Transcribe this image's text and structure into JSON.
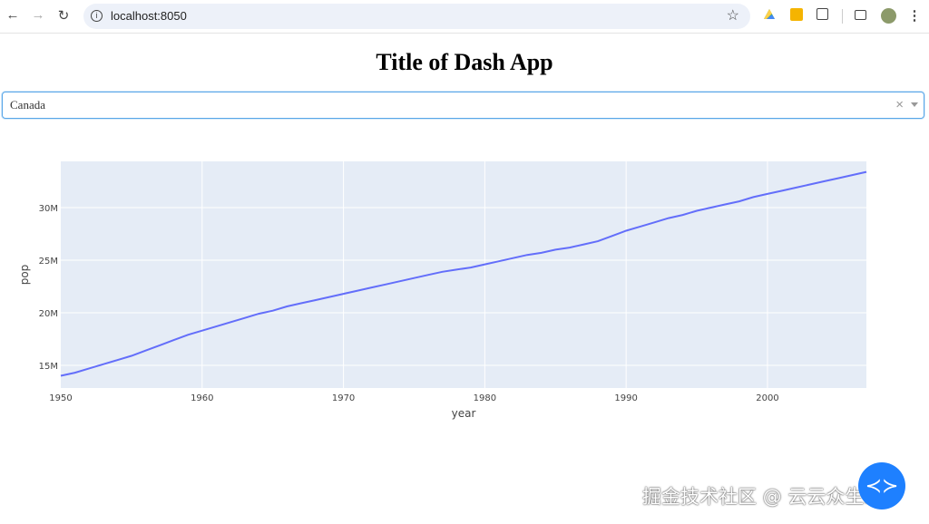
{
  "browser": {
    "url": "localhost:8050",
    "icons": [
      "back-icon",
      "forward-icon",
      "reload-icon",
      "site-info-icon",
      "bookmark-star-icon",
      "google-drive-icon",
      "keep-icon",
      "extensions-icon",
      "cast-icon",
      "profile-avatar",
      "more-menu-icon"
    ]
  },
  "page": {
    "title": "Title of Dash App"
  },
  "dropdown": {
    "value": "Canada",
    "clear_symbol": "×"
  },
  "chart_data": {
    "type": "line",
    "title": "",
    "xlabel": "year",
    "ylabel": "pop",
    "xlim": [
      1950,
      2007
    ],
    "ylim": [
      12840000,
      34400000
    ],
    "xticks": [
      1950,
      1960,
      1970,
      1980,
      1990,
      2000
    ],
    "xtick_labels": [
      "1950",
      "1960",
      "1970",
      "1980",
      "1990",
      "2000"
    ],
    "yticks": [
      15000000,
      20000000,
      25000000,
      30000000
    ],
    "ytick_labels": [
      "15M",
      "20M",
      "25M",
      "30M"
    ],
    "grid": true,
    "line_color": "#636efa",
    "plot_bg": "#e5ecf6",
    "x": [
      1950,
      1951,
      1952,
      1953,
      1954,
      1955,
      1956,
      1957,
      1958,
      1959,
      1960,
      1961,
      1962,
      1963,
      1964,
      1965,
      1966,
      1967,
      1968,
      1969,
      1970,
      1971,
      1972,
      1973,
      1974,
      1975,
      1976,
      1977,
      1978,
      1979,
      1980,
      1981,
      1982,
      1983,
      1984,
      1985,
      1986,
      1987,
      1988,
      1989,
      1990,
      1991,
      1992,
      1993,
      1994,
      1995,
      1996,
      1997,
      1998,
      1999,
      2000,
      2001,
      2002,
      2003,
      2004,
      2005,
      2006,
      2007
    ],
    "y": [
      14000000,
      14300000,
      14700000,
      15100000,
      15500000,
      15900000,
      16400000,
      16900000,
      17400000,
      17900000,
      18300000,
      18700000,
      19100000,
      19500000,
      19900000,
      20200000,
      20600000,
      20900000,
      21200000,
      21500000,
      21800000,
      22100000,
      22400000,
      22700000,
      23000000,
      23300000,
      23600000,
      23900000,
      24100000,
      24300000,
      24600000,
      24900000,
      25200000,
      25500000,
      25700000,
      26000000,
      26200000,
      26500000,
      26800000,
      27300000,
      27800000,
      28200000,
      28600000,
      29000000,
      29300000,
      29700000,
      30000000,
      30300000,
      30600000,
      31000000,
      31300000,
      31600000,
      31900000,
      32200000,
      32500000,
      32800000,
      33100000,
      33400000
    ]
  },
  "watermark": {
    "text": "掘金技术社区 @ 云云众生s",
    "icon": "juejin-logo-icon"
  }
}
